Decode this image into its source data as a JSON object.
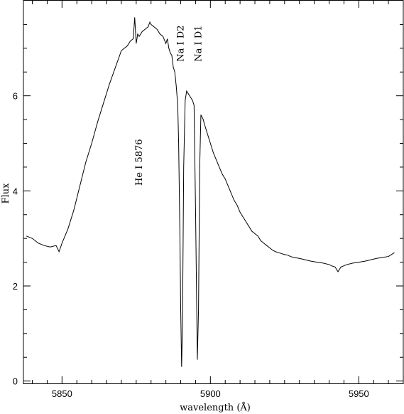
{
  "chart_data": {
    "type": "line",
    "xlabel": "wavelength (Å)",
    "ylabel": "Flux",
    "xlim": [
      5837,
      5965
    ],
    "ylim": [
      -0.05,
      8.0
    ],
    "xticks": [
      5850,
      5900,
      5950
    ],
    "yticks": [
      0,
      2,
      4,
      6
    ],
    "grid": false,
    "annotations": [
      {
        "text": "He I 5876",
        "x": 5876,
        "y": 4.6,
        "orientation": "vertical"
      },
      {
        "text": "Na I D2",
        "x": 5890,
        "y": 7.1,
        "orientation": "vertical"
      },
      {
        "text": "Na I D1",
        "x": 5896,
        "y": 7.1,
        "orientation": "vertical"
      }
    ],
    "series": [
      {
        "x": [
          5838,
          5840,
          5842,
          5844,
          5846,
          5848,
          5849,
          5850,
          5852,
          5854,
          5856,
          5858,
          5860,
          5862,
          5864,
          5866,
          5868,
          5870,
          5872,
          5873,
          5874,
          5874.5,
          5875,
          5875.5,
          5876,
          5877,
          5878,
          5879,
          5879.6,
          5880,
          5881,
          5882,
          5883,
          5884,
          5885,
          5885.5,
          5886,
          5886.5,
          5887,
          5887.5,
          5888,
          5888.5,
          5889,
          5889.3,
          5889.7,
          5890.0,
          5890.3,
          5890.6,
          5891,
          5891.5,
          5892,
          5892.5,
          5893,
          5893.5,
          5894,
          5894.5,
          5895.0,
          5895.3,
          5895.6,
          5896.0,
          5896.4,
          5896.8,
          5897.2,
          5897.6,
          5898,
          5899,
          5900,
          5901,
          5902,
          5903,
          5904,
          5905,
          5906,
          5907,
          5908,
          5909,
          5910,
          5911,
          5912,
          5913,
          5914,
          5915,
          5916,
          5917,
          5918,
          5919,
          5920,
          5921,
          5922,
          5923,
          5924,
          5925,
          5926,
          5927,
          5928,
          5930,
          5932,
          5934,
          5936,
          5938,
          5940,
          5941,
          5942,
          5943,
          5944,
          5946,
          5948,
          5950,
          5952,
          5954,
          5956,
          5958,
          5960,
          5962
        ],
        "y": [
          3.05,
          3.0,
          2.9,
          2.85,
          2.82,
          2.85,
          2.72,
          2.9,
          3.2,
          3.6,
          4.1,
          4.6,
          5.0,
          5.45,
          5.85,
          6.25,
          6.6,
          6.95,
          7.05,
          7.15,
          7.2,
          7.65,
          7.1,
          7.3,
          7.25,
          7.35,
          7.4,
          7.45,
          7.55,
          7.5,
          7.45,
          7.4,
          7.3,
          7.25,
          7.1,
          7.2,
          7.0,
          6.9,
          6.85,
          6.6,
          6.5,
          6.2,
          5.8,
          5.0,
          3.2,
          1.5,
          0.3,
          1.2,
          4.5,
          5.9,
          6.1,
          6.05,
          6.0,
          5.95,
          5.9,
          5.8,
          3.6,
          2.0,
          0.45,
          1.5,
          4.5,
          5.6,
          5.55,
          5.5,
          5.4,
          5.2,
          5.0,
          4.8,
          4.65,
          4.5,
          4.35,
          4.25,
          4.1,
          3.95,
          3.8,
          3.7,
          3.55,
          3.45,
          3.35,
          3.25,
          3.15,
          3.1,
          3.05,
          2.95,
          2.9,
          2.85,
          2.8,
          2.75,
          2.72,
          2.7,
          2.68,
          2.66,
          2.65,
          2.62,
          2.6,
          2.58,
          2.55,
          2.52,
          2.5,
          2.48,
          2.45,
          2.42,
          2.4,
          2.3,
          2.4,
          2.45,
          2.48,
          2.5,
          2.52,
          2.55,
          2.58,
          2.6,
          2.62,
          2.7
        ]
      }
    ]
  }
}
